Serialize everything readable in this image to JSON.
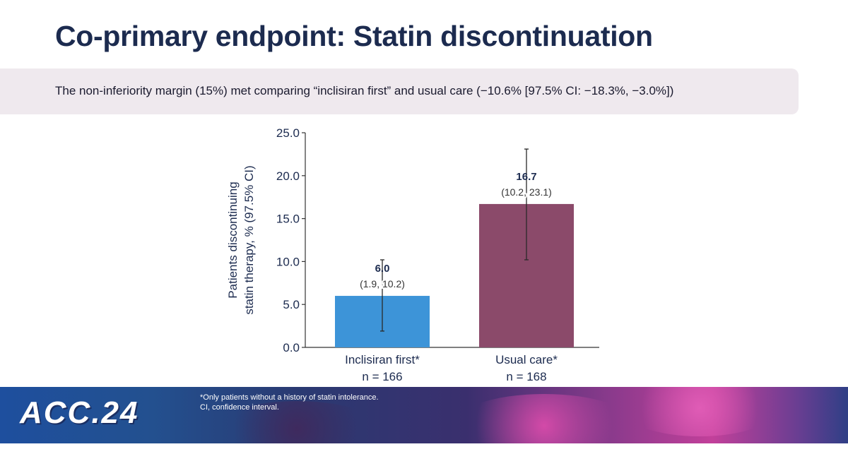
{
  "slide": {
    "title": "Co-primary endpoint: Statin discontinuation",
    "banner": "The non-inferiority margin (15%) met comparing “inclisiran first” and usual care (−10.6% [97.5% CI: −18.3%, −3.0%])"
  },
  "chart_data": {
    "type": "bar",
    "categories": [
      "Inclisiran first*",
      "Usual care*"
    ],
    "category_n": [
      "n = 166",
      "n = 168"
    ],
    "values": [
      6.0,
      16.7
    ],
    "ci_lower": [
      1.9,
      10.2
    ],
    "ci_upper": [
      10.2,
      23.1
    ],
    "value_labels": [
      "6.0",
      "16.7"
    ],
    "ci_labels": [
      "(1.9, 10.2)",
      "(10.2, 23.1)"
    ],
    "colors": [
      "#3d94d8",
      "#8b4a6a"
    ],
    "ylabel_line1": "Patients discontinuing",
    "ylabel_line2": "statin therapy, % (97.5% CI)",
    "ylim": [
      0,
      25
    ],
    "yticks": [
      0,
      5,
      10,
      15,
      20,
      25
    ],
    "ytick_labels": [
      "0.0",
      "5.0",
      "10.0",
      "15.0",
      "20.0",
      "25.0"
    ],
    "title": "",
    "xlabel": ""
  },
  "footer": {
    "logo": "ACC.24",
    "footnote_line1": "*Only patients without a history of statin intolerance.",
    "footnote_line2": "CI, confidence interval."
  }
}
